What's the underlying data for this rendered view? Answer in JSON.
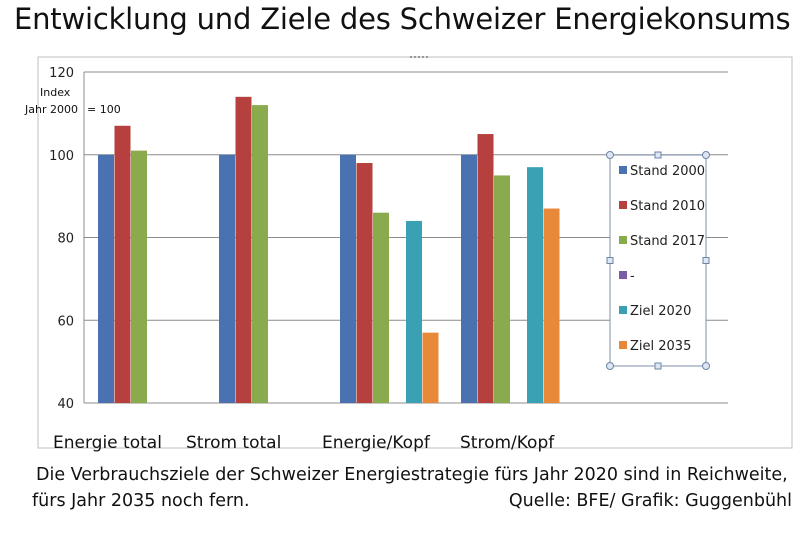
{
  "title": "Entwicklung und Ziele des Schweizer Energiekonsums",
  "chart_data": {
    "type": "bar",
    "categories": [
      "Energie total",
      "Strom total",
      "Energie/Kopf",
      "Strom/Kopf"
    ],
    "series": [
      {
        "name": "Stand 2000",
        "color": "#4a72b0",
        "values": [
          100,
          100,
          100,
          100
        ]
      },
      {
        "name": "Stand 2010",
        "color": "#b5403d",
        "values": [
          107,
          114,
          98,
          105
        ]
      },
      {
        "name": "Stand 2017",
        "color": "#8aab4d",
        "values": [
          101,
          112,
          86,
          95
        ]
      },
      {
        "name": "-",
        "color": "#7b5aa6",
        "values": [
          null,
          null,
          null,
          null
        ]
      },
      {
        "name": "Ziel 2020",
        "color": "#3aa1b5",
        "values": [
          null,
          null,
          84,
          97
        ]
      },
      {
        "name": "Ziel 2035",
        "color": "#e8893a",
        "values": [
          null,
          null,
          57,
          87
        ]
      }
    ],
    "ylim": [
      40,
      120
    ],
    "yticks": [
      40,
      60,
      80,
      100,
      120
    ],
    "grid": true,
    "legend_position": "right",
    "axis_note": [
      "Index",
      "Jahr 2000",
      "= 100"
    ]
  },
  "caption": {
    "line1": "Die Verbrauchsziele der Schweizer Energiestrategie fürs Jahr 2020 sind in Reichweite,",
    "line2_left": "fürs  Jahr 2035 noch fern.",
    "line2_right": "Quelle: BFE/ Grafik: Guggenbühl"
  }
}
